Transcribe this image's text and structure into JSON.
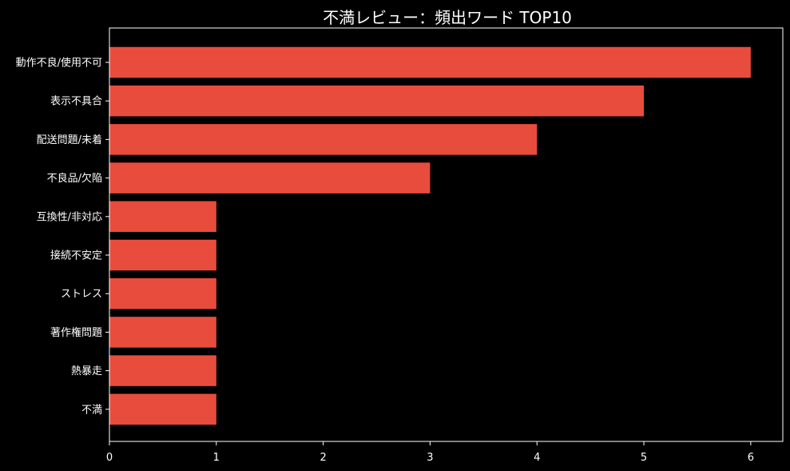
{
  "chart_data": {
    "type": "bar",
    "orientation": "horizontal",
    "title": "不満レビュー：頻出ワード TOP10",
    "xlabel": "",
    "ylabel": "",
    "categories": [
      "動作不良/使用不可",
      "表示不具合",
      "配送問題/未着",
      "不良品/欠陥",
      "互換性/非対応",
      "接続不安定",
      "ストレス",
      "著作権問題",
      "熱暴走",
      "不満"
    ],
    "values": [
      6,
      5,
      4,
      3,
      1,
      1,
      1,
      1,
      1,
      1
    ],
    "xlim": [
      0,
      6.3
    ],
    "xticks": [
      0,
      1,
      2,
      3,
      4,
      5,
      6
    ],
    "grid": false,
    "bar_color": "#e84c3d",
    "background": "#000000",
    "text_color": "#ffffff"
  }
}
